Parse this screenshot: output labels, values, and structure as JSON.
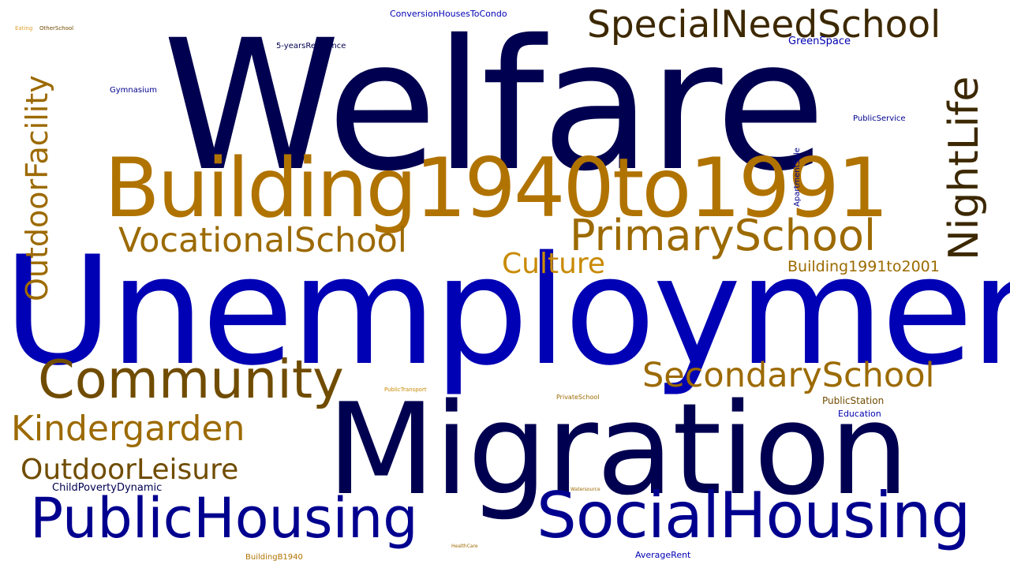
{
  "colors": {
    "navy": "#000050",
    "blue": "#0000b4",
    "mid_blue": "#00008f",
    "ochre": "#b07300",
    "dark_brown": "#3c2800",
    "brown": "#704c00",
    "gold": "#c88a00",
    "tan": "#9c6a00",
    "light_gold": "#e0a030"
  },
  "words": {
    "welfare": "Welfare",
    "unemployment": "Unemployment",
    "migration": "Migration",
    "building_1940_1991": "Building1940to1991",
    "social_housing": "SocialHousing",
    "public_housing": "PublicHousing",
    "community": "Community",
    "primary_school": "PrimarySchool",
    "vocational_school": "VocationalSchool",
    "special_need_school": "SpecialNeedSchool",
    "night_life": "NightLife",
    "outdoor_facility": "OutdoorFacility",
    "secondary_school": "SecondarySchool",
    "kindergarden": "Kindergarden",
    "outdoor_leisure": "OutdoorLeisure",
    "culture": "Culture",
    "building_1991_2001": "Building1991to2001",
    "child_poverty_dynamic": "ChildPovertyDynamic",
    "conversion_houses_to_condo": "ConversionHousesToCondo",
    "green_space": "GreenSpace",
    "five_years_residence": "5-yearsResidence",
    "gymnasium": "Gymnasium",
    "public_service": "PublicService",
    "apartment_sale": "ApartmentSale",
    "public_station": "PublicStation",
    "education": "Education",
    "private_school": "PrivateSchool",
    "public_transport": "PublicTransport",
    "watersource": "Watersource",
    "health_care": "HealthCare",
    "building_b1940": "BuildingB1940",
    "average_rent": "AverageRent",
    "eating": "Eating",
    "other_school": "OtherSchool"
  }
}
